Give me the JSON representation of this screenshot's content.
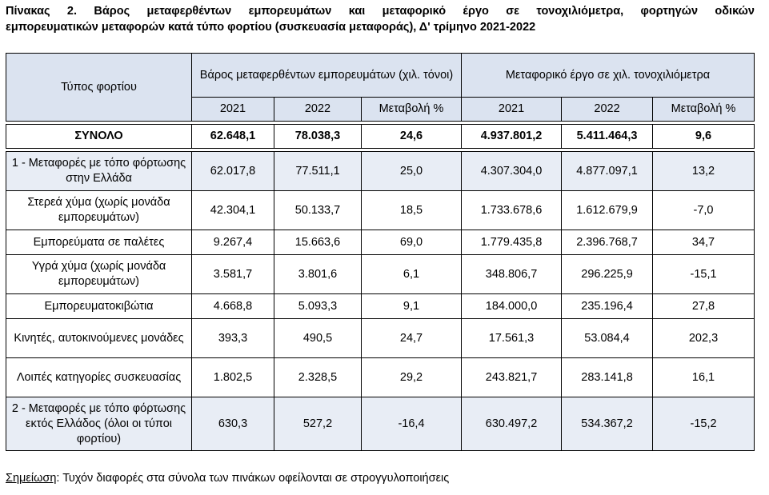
{
  "title": {
    "line1": "Πίνακας 2. Βάρος μεταφερθέντων εμπορευμάτων και μεταφορικό έργο σε τονοχιλιόμετρα, φορτηγών οδικών",
    "line2": "εμπορευματικών μεταφορών κατά τύπο φορτίου (συσκευασία μεταφοράς), Δ' τρίμηνο 2021-2022"
  },
  "header": {
    "type_col": "Τύπος φορτίου",
    "group1": "Βάρος μεταφερθέντων εμπορευμάτων (χιλ. τόνοι)",
    "group2": "Μεταφορικό έργο σε χιλ. τονοχιλιόμετρα",
    "sub": [
      "2021",
      "2022",
      "Μεταβολή %",
      "2021",
      "2022",
      "Μεταβολή %"
    ]
  },
  "total": {
    "label": "ΣΥΝΟΛΟ",
    "values": [
      "62.648,1",
      "78.038,3",
      "24,6",
      "4.937.801,2",
      "5.411.464,3",
      "9,6"
    ]
  },
  "rows": [
    {
      "label": "1 - Μεταφορές με τόπο φόρτωσης στην Ελλάδα",
      "values": [
        "62.017,8",
        "77.511,1",
        "25,0",
        "4.307.304,0",
        "4.877.097,1",
        "13,2"
      ]
    },
    {
      "label": "Στερεά χύμα (χωρίς μονάδα εμπορευμάτων)",
      "values": [
        "42.304,1",
        "50.133,7",
        "18,5",
        "1.733.678,6",
        "1.612.679,9",
        "-7,0"
      ]
    },
    {
      "label": "Εμπορεύματα σε παλέτες",
      "values": [
        "9.267,4",
        "15.663,6",
        "69,0",
        "1.779.435,8",
        "2.396.768,7",
        "34,7"
      ]
    },
    {
      "label": "Υγρά χύμα (χωρίς μονάδα εμπορευμάτων)",
      "values": [
        "3.581,7",
        "3.801,6",
        "6,1",
        "348.806,7",
        "296.225,9",
        "-15,1"
      ]
    },
    {
      "label": "Εμπορευματοκιβώτια",
      "values": [
        "4.668,8",
        "5.093,3",
        "9,1",
        "184.000,0",
        "235.196,4",
        "27,8"
      ]
    },
    {
      "label": "Κινητές, αυτοκινούμενες μονάδες",
      "values": [
        "393,3",
        "490,5",
        "24,7",
        "17.561,3",
        "53.084,4",
        "202,3"
      ]
    },
    {
      "label": "Λοιπές κατηγορίες συσκευασίας",
      "values": [
        "1.802,5",
        "2.328,5",
        "29,2",
        "243.821,7",
        "283.141,8",
        "16,1"
      ]
    },
    {
      "label": "2 - Μεταφορές με τόπο φόρτωσης εκτός Ελλάδος (όλοι οι τύποι φορτίου)",
      "values": [
        "630,3",
        "527,2",
        "-16,4",
        "630.497,2",
        "534.367,2",
        "-15,2"
      ]
    }
  ],
  "note": {
    "prefix": "Σημείωση",
    "text": ": Τυχόν διαφορές στα σύνολα των πινάκων οφείλονται σε στρογγυλοποιήσεις"
  }
}
